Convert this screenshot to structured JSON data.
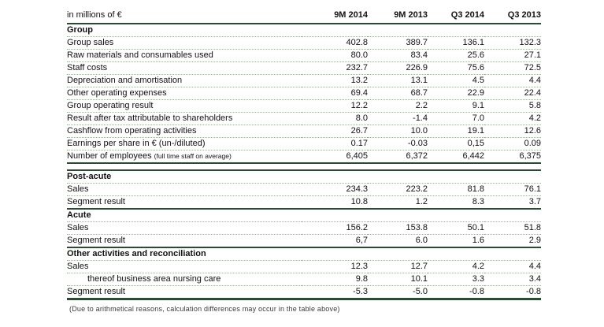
{
  "colors": {
    "rule_dark": "#2c4a31",
    "rule_dotted": "#9fae9f",
    "text": "#111111"
  },
  "page": {
    "footnote": "(Due to arithmetical reasons, calculation differences may occur in the table above)"
  },
  "table": {
    "unit_label": "in millions of €",
    "columns": [
      "9M 2014",
      "9M 2013",
      "Q3 2014",
      "Q3 2013"
    ],
    "sections": [
      {
        "title": "Group",
        "rows": [
          {
            "label": "Group sales",
            "values": [
              "402.8",
              "389.7",
              "136.1",
              "132.3"
            ]
          },
          {
            "label": "Raw materials and consumables used",
            "values": [
              "80.0",
              "83.4",
              "25.6",
              "27.1"
            ]
          },
          {
            "label": "Staff costs",
            "values": [
              "232.7",
              "226.9",
              "75.6",
              "72.5"
            ]
          },
          {
            "label": "Depreciation and amortisation",
            "values": [
              "13.2",
              "13.1",
              "4.5",
              "4.4"
            ]
          },
          {
            "label": "Other operating expenses",
            "values": [
              "69.4",
              "68.7",
              "22.9",
              "22.4"
            ]
          },
          {
            "label": "Group operating result",
            "values": [
              "12.2",
              "2.2",
              "9.1",
              "5.8"
            ]
          },
          {
            "label": "Result after tax attributable to shareholders",
            "values": [
              "8.0",
              "-1.4",
              "7.0",
              "4.2"
            ]
          },
          {
            "label": "Cashflow from operating activities",
            "values": [
              "26.7",
              "10.0",
              "19.1",
              "12.6"
            ]
          },
          {
            "label": "Earnings per share in € (un-/diluted)",
            "values": [
              "0.17",
              "-0.03",
              "0,15",
              "0.09"
            ]
          },
          {
            "label": "Number of employees",
            "label_note": "(full time staff on average)",
            "values": [
              "6,405",
              "6,372",
              "6,442",
              "6,375"
            ]
          }
        ]
      },
      {
        "title": "Post-acute",
        "rows": [
          {
            "label": "Sales",
            "values": [
              "234.3",
              "223.2",
              "81.8",
              "76.1"
            ]
          },
          {
            "label": "Segment result",
            "values": [
              "10.8",
              "1.2",
              "8.3",
              "3.7"
            ]
          }
        ]
      },
      {
        "title": "Acute",
        "rows": [
          {
            "label": "Sales",
            "values": [
              "156.2",
              "153.8",
              "50.1",
              "51.8"
            ]
          },
          {
            "label": "Segment result",
            "values": [
              "6,7",
              "6.0",
              "1.6",
              "2.9"
            ]
          }
        ]
      },
      {
        "title": "Other activities and reconciliation",
        "rows": [
          {
            "label": "Sales",
            "values": [
              "12.3",
              "12.7",
              "4.2",
              "4.4"
            ]
          },
          {
            "label": "thereof business area nursing care",
            "values": [
              "9.8",
              "10.1",
              "3.3",
              "3.4"
            ]
          },
          {
            "label": "Segment result",
            "values": [
              "-5.3",
              "-5.0",
              "-0.8",
              "-0.8"
            ]
          }
        ]
      }
    ]
  }
}
